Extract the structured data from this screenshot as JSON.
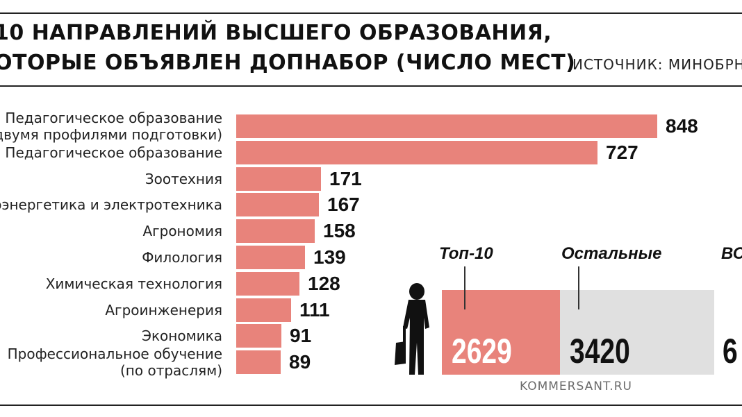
{
  "header": {
    "title_line1": "10 НАПРАВЛЕНИЙ ВЫСШЕГО ОБРАЗОВАНИЯ,",
    "title_line2": "ОТОРЫЕ ОБЪЯВЛЕН ДОПНАБОР (ЧИСЛО МЕСТ)",
    "source": "ИСТОЧНИК: МИНОБРНАУ"
  },
  "colors": {
    "bar": "#e8837b",
    "rest_block": "#e0e0e0",
    "text": "#111111"
  },
  "chart_data": {
    "type": "bar",
    "orientation": "horizontal",
    "title": "10 НАПРАВЛЕНИЙ ВЫСШЕГО ОБРАЗОВАНИЯ, ОТОРЫЕ ОБЪЯВЛЕН ДОПНАБОР (ЧИСЛО МЕСТ)",
    "categories": [
      [
        "Педагогическое образование",
        "двумя профилями подготовки)"
      ],
      [
        "Педагогическое образование"
      ],
      [
        "Зоотехния"
      ],
      [
        "оэнергетика и электротехника"
      ],
      [
        "Агрономия"
      ],
      [
        "Филология"
      ],
      [
        "Химическая технология"
      ],
      [
        "Агроинженерия"
      ],
      [
        "Экономика"
      ],
      [
        "Профессиональное обучение",
        "(по отраслям)"
      ]
    ],
    "values": [
      848,
      727,
      171,
      167,
      158,
      139,
      128,
      111,
      91,
      89
    ],
    "xlim": [
      0,
      848
    ],
    "grid": false,
    "legend": "none"
  },
  "summary": {
    "top10_label": "Топ-10",
    "top10_value": "2629",
    "rest_label": "Остальные",
    "rest_value": "3420",
    "total_label": "ВС",
    "total_value": "6"
  },
  "footer": {
    "brand": "KOMMERSANT.RU"
  },
  "icons": {
    "person": "student-silhouette-icon"
  }
}
